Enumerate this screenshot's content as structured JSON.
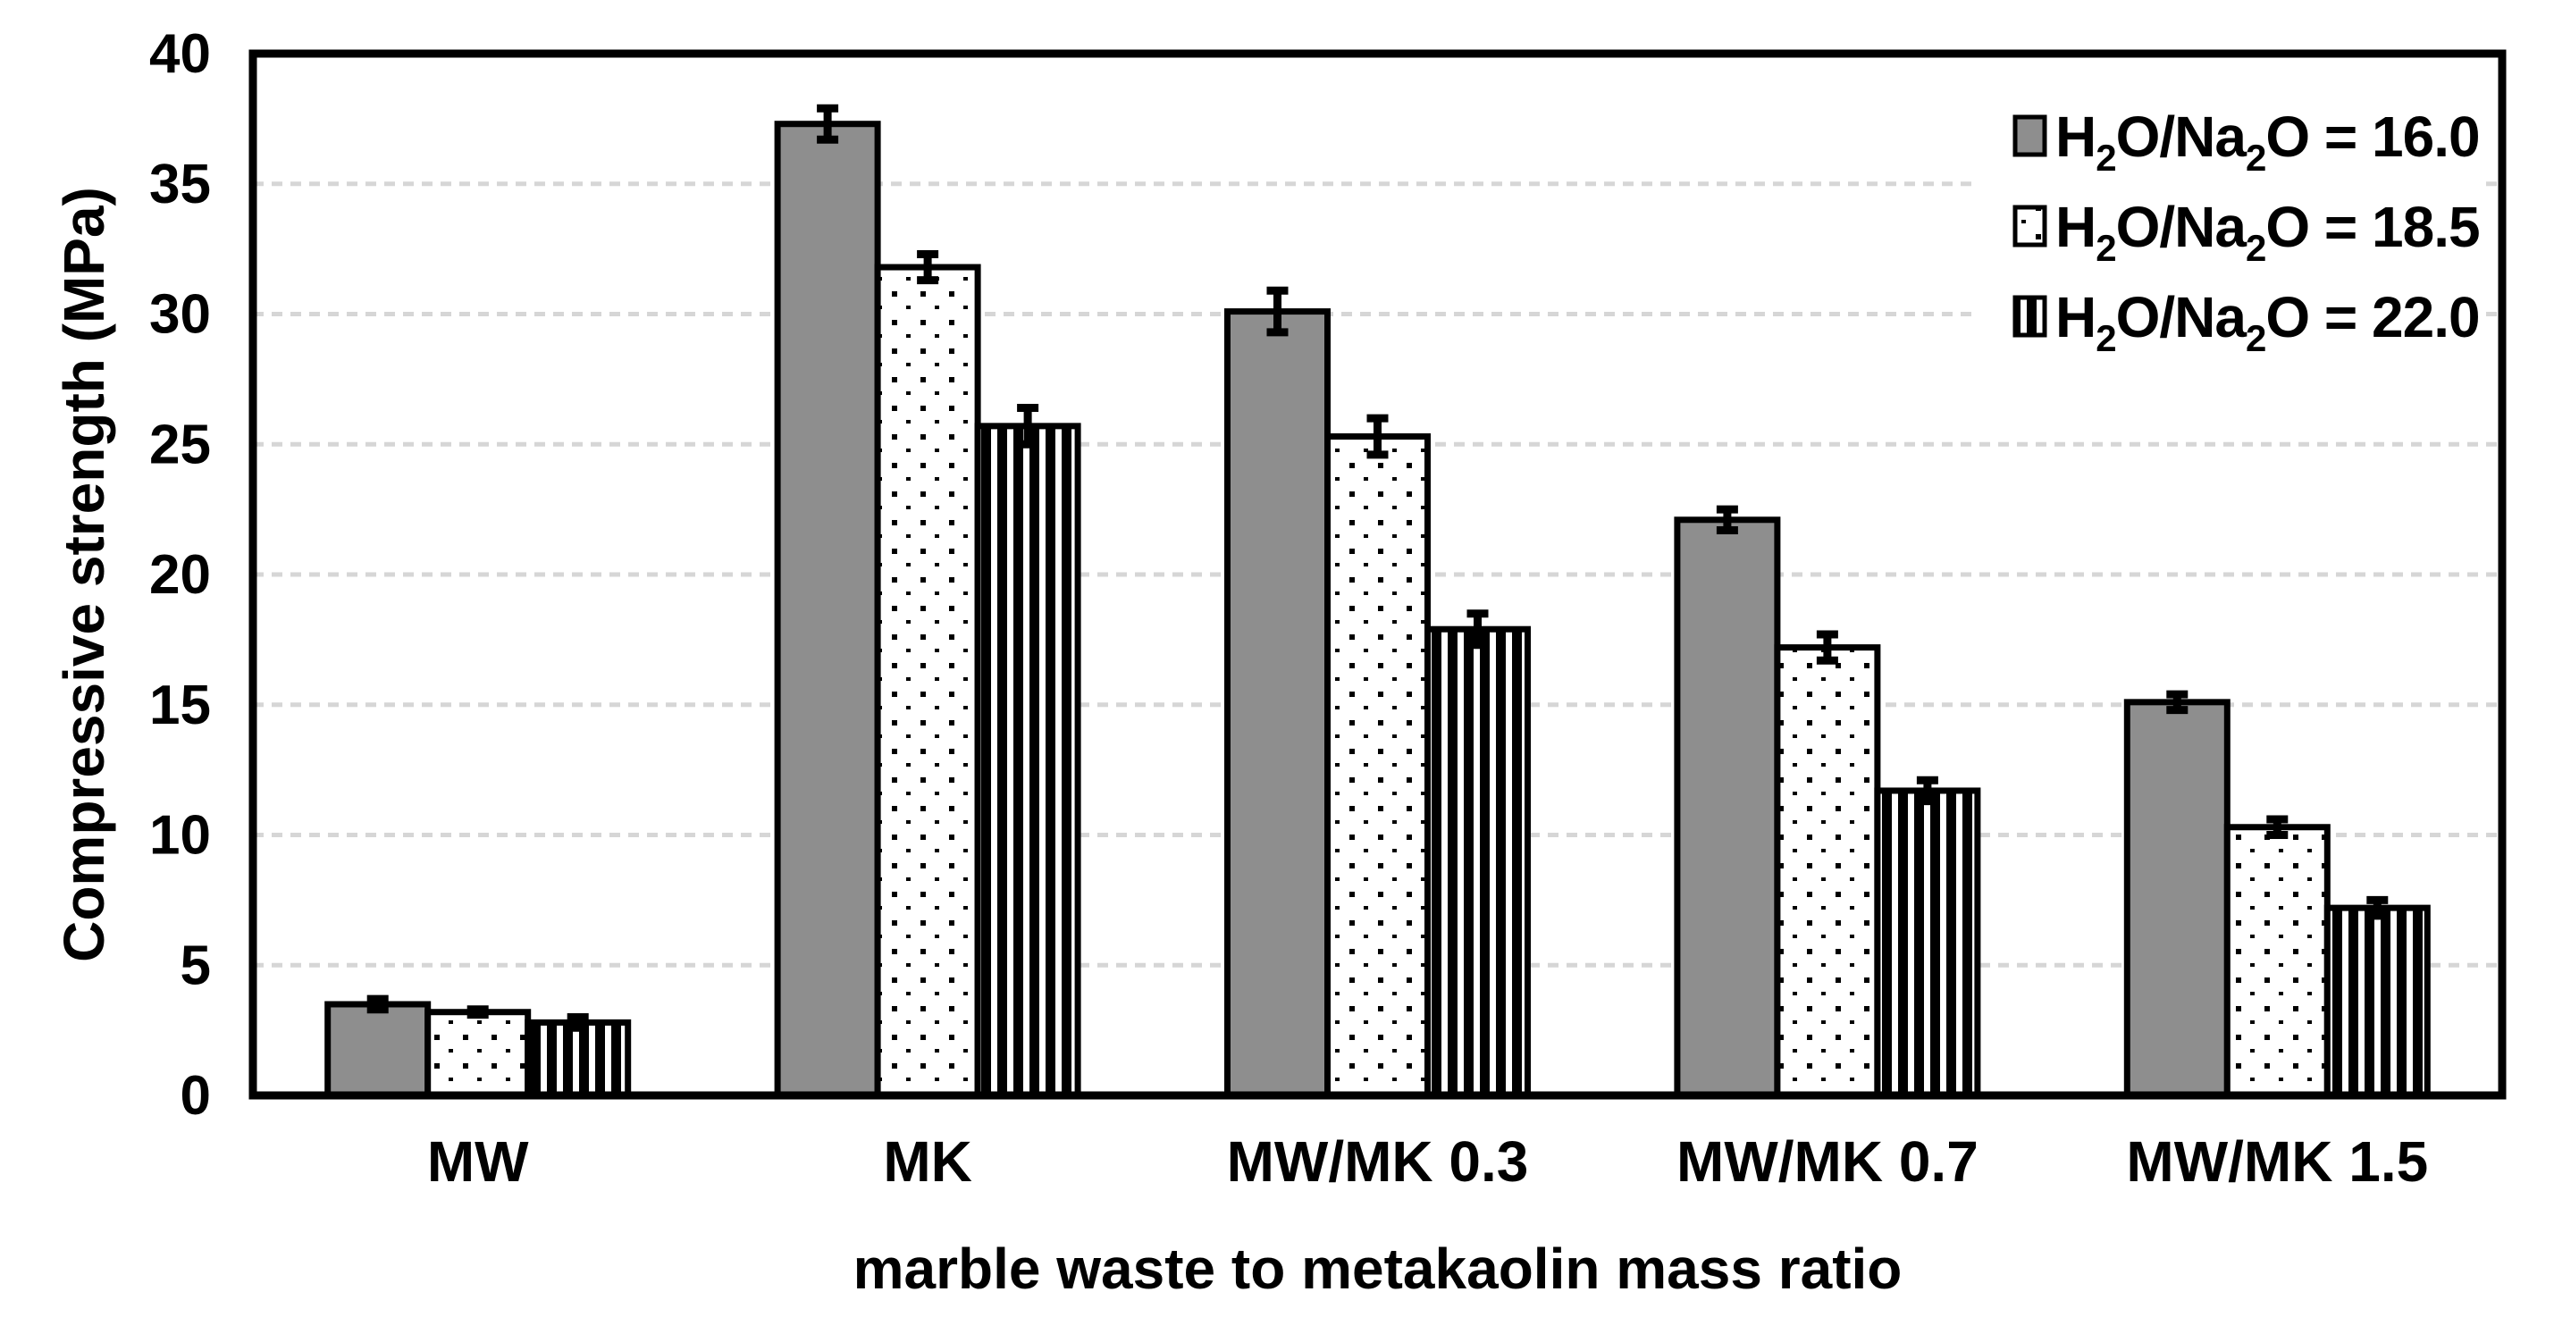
{
  "chart_data": {
    "type": "bar",
    "title": "",
    "xlabel": "marble waste to metakaolin mass ratio",
    "ylabel": "Compressive strength (MPa)",
    "ylim": [
      0,
      40
    ],
    "ytick_step": 5,
    "yticks": [
      0,
      5,
      10,
      15,
      20,
      25,
      30,
      35,
      40
    ],
    "grid": true,
    "legend_position": "top-right-inside",
    "categories": [
      "MW",
      "MK",
      "MW/MK 0.3",
      "MW/MK 0.7",
      "MW/MK 1.5"
    ],
    "series": [
      {
        "name": "H₂O/Na₂O = 16.0",
        "pattern": "solid-gray",
        "fill": "#8e8e8e",
        "values": [
          3.5,
          37.3,
          30.1,
          22.1,
          15.1
        ],
        "errors": [
          0.2,
          0.6,
          0.8,
          0.4,
          0.3
        ]
      },
      {
        "name": "H₂O/Na₂O = 18.5",
        "pattern": "dots",
        "fill": "#ffffff",
        "values": [
          3.2,
          31.8,
          25.3,
          17.2,
          10.3
        ],
        "errors": [
          0.1,
          0.5,
          0.7,
          0.5,
          0.3
        ]
      },
      {
        "name": "H₂O/Na₂O = 22.0",
        "pattern": "vertical-stripes",
        "fill": "#ffffff",
        "values": [
          2.8,
          25.7,
          17.9,
          11.7,
          7.2
        ],
        "errors": [
          0.2,
          0.7,
          0.6,
          0.4,
          0.3
        ]
      }
    ],
    "colors": {
      "bar_border": "#000000",
      "error_bar": "#000000",
      "grid": "#d6d6d6",
      "axis": "#000000",
      "text": "#000000",
      "plot_background": "#ffffff"
    }
  }
}
